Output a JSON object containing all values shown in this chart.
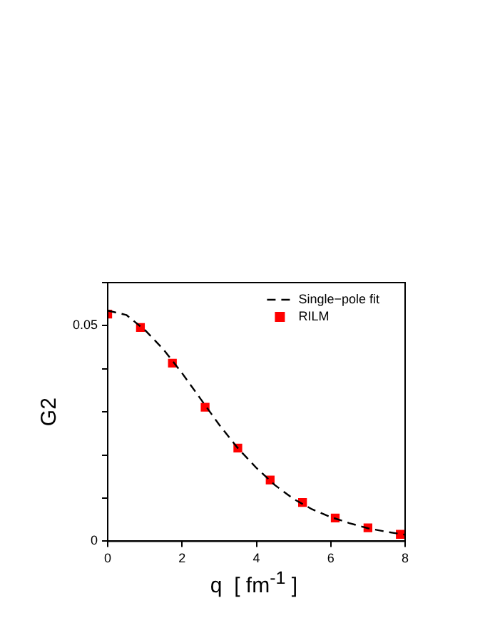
{
  "chart_data": {
    "type": "scatter",
    "xlabel": "q  [ fm$^{-1}$ ]",
    "ylabel": "G2",
    "xlim": [
      0,
      8
    ],
    "xticks": [
      0,
      2,
      4,
      6,
      8
    ],
    "ylim": [
      0,
      0.06
    ],
    "yticks": [
      0,
      {
        "value": 0.01,
        "label": null
      },
      {
        "value": 0.02,
        "label": null
      },
      {
        "value": 0.03,
        "label": null
      },
      {
        "value": 0.04,
        "label": null
      },
      0.05,
      {
        "value": 0.06,
        "label": null
      }
    ],
    "grid": false,
    "legend": "top right",
    "series": [
      {
        "name": "Single−pole fit",
        "type": "line",
        "line_style": "dashed",
        "marker": "none",
        "color": "#000000",
        "x": [
          0,
          0.5,
          1,
          1.5,
          2,
          2.5,
          3,
          3.5,
          4,
          4.5,
          5,
          5.5,
          6,
          6.5,
          7,
          7.5,
          8
        ],
        "values": [
          0.0535,
          0.0525,
          0.049,
          0.0445,
          0.039,
          0.033,
          0.027,
          0.0216,
          0.017,
          0.013,
          0.0098,
          0.0074,
          0.0056,
          0.0042,
          0.003,
          0.0022,
          0.0015
        ]
      },
      {
        "name": "RILM",
        "type": "scatter",
        "marker": "square",
        "color": "#ff0000",
        "x": [
          0,
          0.88,
          1.74,
          2.62,
          3.5,
          4.37,
          5.24,
          6.12,
          7.0,
          7.87
        ],
        "values": [
          0.0527,
          0.0496,
          0.0413,
          0.0311,
          0.0216,
          0.0142,
          0.009,
          0.0054,
          0.0031,
          0.0016
        ]
      }
    ]
  }
}
